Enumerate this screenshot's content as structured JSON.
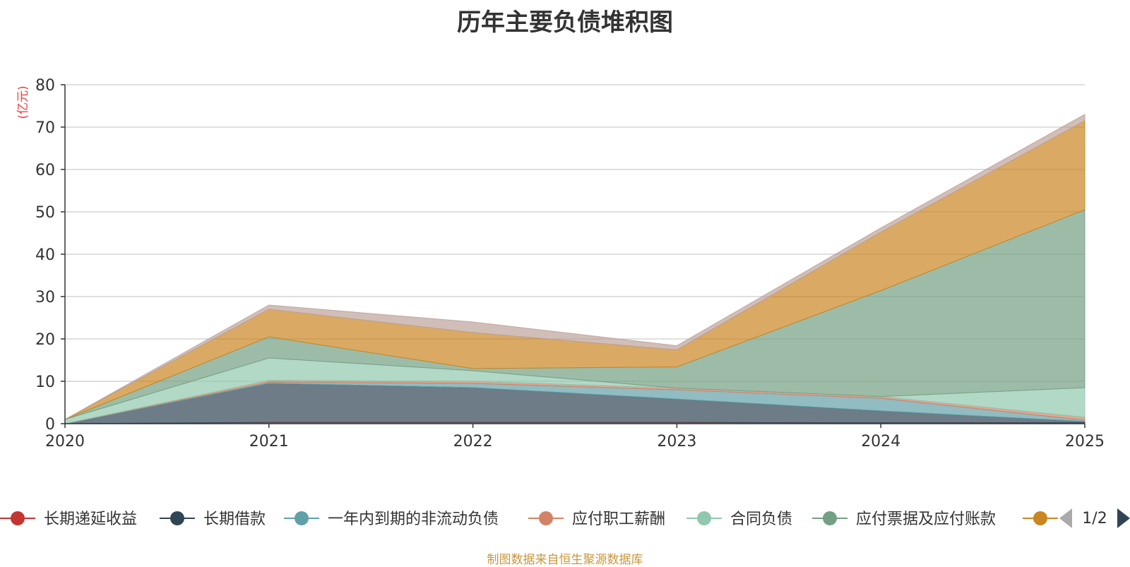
{
  "chart_data": {
    "type": "area",
    "stacked": true,
    "title": "历年主要负债堆积图",
    "unit_label": "(亿元)",
    "x": [
      "2020",
      "2021",
      "2022",
      "2023",
      "2024",
      "2025"
    ],
    "ylim": [
      0,
      80
    ],
    "yticks": [
      "0",
      "10",
      "20",
      "30",
      "40",
      "50",
      "60",
      "70",
      "80"
    ],
    "grid": true,
    "legend_position": "bottom",
    "legend_page": "1/2",
    "series": [
      {
        "name": "长期递延收益",
        "color": "#c23531",
        "values": [
          0,
          0.3,
          0.3,
          0.3,
          0.2,
          0.2
        ]
      },
      {
        "name": "长期借款",
        "color": "#2f4554",
        "values": [
          0,
          9.2,
          8.2,
          5.5,
          2.8,
          0.3
        ]
      },
      {
        "name": "一年内到期的非流动负债",
        "color": "#61a0a8",
        "values": [
          0,
          0.3,
          1.0,
          2.2,
          3.0,
          0.3
        ]
      },
      {
        "name": "应付职工薪酬",
        "color": "#d48265",
        "values": [
          0,
          0.4,
          0.5,
          0.4,
          0.4,
          0.7
        ]
      },
      {
        "name": "合同负债",
        "color": "#91c7ae",
        "values": [
          1.0,
          5.3,
          2.5,
          0,
          0,
          7.0
        ]
      },
      {
        "name": "应付票据及应付账款",
        "color": "#749f83",
        "values": [
          0,
          5.0,
          0.5,
          5.0,
          25.0,
          42.0
        ]
      },
      {
        "name": "",
        "color": "#ca8622",
        "values": [
          0,
          6.5,
          8.5,
          4.0,
          13.8,
          21.0
        ]
      },
      {
        "name": "",
        "color": "#bda29a",
        "values": [
          0,
          1.0,
          2.5,
          1.0,
          1.0,
          1.5
        ]
      }
    ]
  },
  "footer": {
    "source": "制图数据来自恒生聚源数据库"
  }
}
